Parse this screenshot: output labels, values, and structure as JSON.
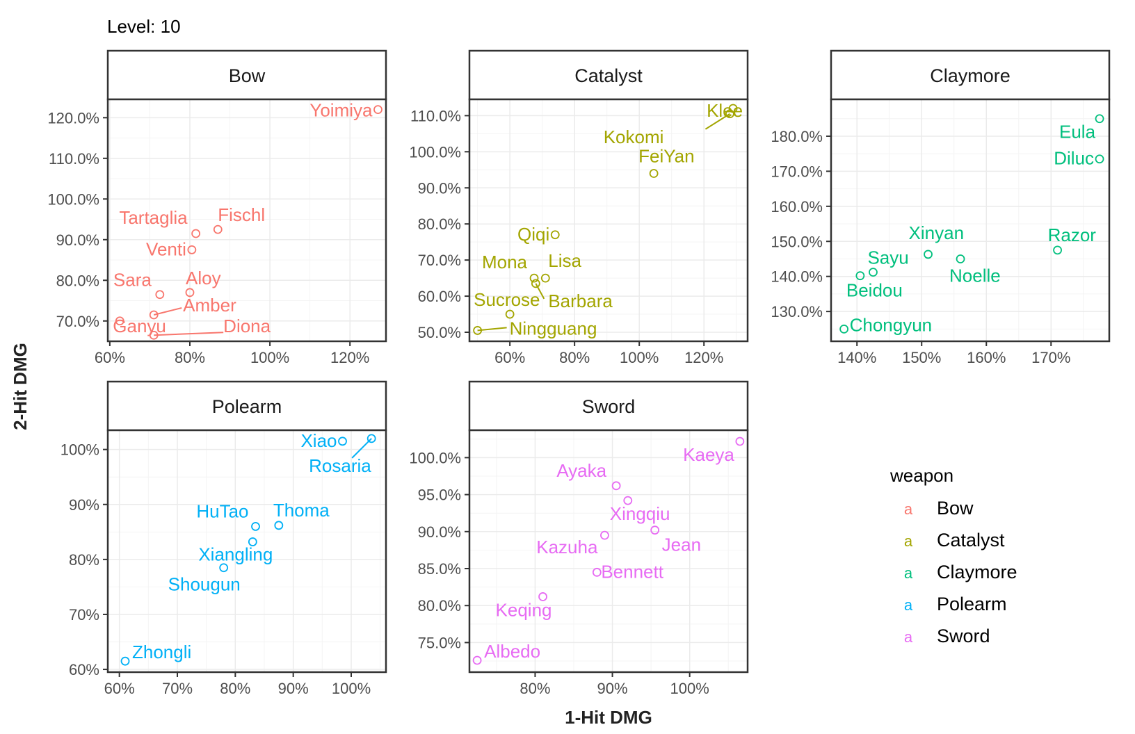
{
  "chart_data": {
    "type": "scatter",
    "title": "Level: 10",
    "xlabel": "1-Hit DMG",
    "ylabel": "2-Hit DMG",
    "legend": {
      "title": "weapon",
      "position": "right",
      "glyph": "a",
      "entries": [
        {
          "name": "Bow",
          "color": "#F8766D"
        },
        {
          "name": "Catalyst",
          "color": "#A3A500"
        },
        {
          "name": "Claymore",
          "color": "#00BF7D"
        },
        {
          "name": "Polearm",
          "color": "#00B0F6"
        },
        {
          "name": "Sword",
          "color": "#E76BF3"
        }
      ]
    },
    "grid": true,
    "panels": [
      {
        "title": "Bow",
        "color": "#F8766D",
        "xlim": [
          0.595,
          1.29
        ],
        "ylim": [
          0.65,
          1.245
        ],
        "xticks": [
          0.6,
          0.8,
          1.0,
          1.2
        ],
        "xtick_labels": [
          "60%",
          "80%",
          "100%",
          "120%"
        ],
        "yticks": [
          0.7,
          0.8,
          0.9,
          1.0,
          1.1,
          1.2
        ],
        "ytick_labels": [
          "70.0%",
          "80.0%",
          "90.0%",
          "100.0%",
          "110.0%",
          "120.0%"
        ],
        "points": [
          {
            "label": "Yoimiya",
            "x": 1.27,
            "y": 1.22
          },
          {
            "label": "Fischl",
            "x": 0.87,
            "y": 0.925
          },
          {
            "label": "Tartaglia",
            "x": 0.815,
            "y": 0.915
          },
          {
            "label": "Venti",
            "x": 0.805,
            "y": 0.875
          },
          {
            "label": "Sara",
            "x": 0.725,
            "y": 0.765
          },
          {
            "label": "Aloy",
            "x": 0.8,
            "y": 0.77
          },
          {
            "label": "Amber",
            "x": 0.71,
            "y": 0.715
          },
          {
            "label": "Ganyu",
            "x": 0.625,
            "y": 0.7
          },
          {
            "label": "Diona",
            "x": 0.71,
            "y": 0.665
          }
        ]
      },
      {
        "title": "Catalyst",
        "color": "#A3A500",
        "xlim": [
          0.475,
          1.335
        ],
        "ylim": [
          0.475,
          1.145
        ],
        "xticks": [
          0.6,
          0.8,
          1.0,
          1.2
        ],
        "xtick_labels": [
          "60%",
          "80%",
          "100%",
          "120%"
        ],
        "yticks": [
          0.5,
          0.6,
          0.7,
          0.8,
          0.9,
          1.0,
          1.1
        ],
        "ytick_labels": [
          "50.0%",
          "60.0%",
          "70.0%",
          "80.0%",
          "90.0%",
          "100.0%",
          "110.0%"
        ],
        "points": [
          {
            "label": "Klee",
            "x": 1.29,
            "y": 1.12
          },
          {
            "label": "Kokomi",
            "x": 1.28,
            "y": 1.105
          },
          {
            "label": "FeiYan",
            "x": 1.045,
            "y": 0.94
          },
          {
            "label": "Qiqi",
            "x": 0.74,
            "y": 0.77
          },
          {
            "label": "Lisa",
            "x": 0.71,
            "y": 0.65
          },
          {
            "label": "Mona",
            "x": 0.675,
            "y": 0.65
          },
          {
            "label": "Barbara",
            "x": 0.68,
            "y": 0.635
          },
          {
            "label": "Sucrose",
            "x": 0.6,
            "y": 0.55
          },
          {
            "label": "Ningguang",
            "x": 0.5,
            "y": 0.505
          }
        ]
      },
      {
        "title": "Claymore",
        "color": "#00BF7D",
        "xlim": [
          1.36,
          1.79
        ],
        "ylim": [
          1.215,
          1.905
        ],
        "xticks": [
          1.4,
          1.5,
          1.6,
          1.7
        ],
        "xtick_labels": [
          "140%",
          "150%",
          "160%",
          "170%"
        ],
        "yticks": [
          1.3,
          1.4,
          1.5,
          1.6,
          1.7,
          1.8
        ],
        "ytick_labels": [
          "130.0%",
          "140.0%",
          "150.0%",
          "160.0%",
          "170.0%",
          "180.0%"
        ],
        "points": [
          {
            "label": "Eula",
            "x": 1.775,
            "y": 1.85
          },
          {
            "label": "Diluc",
            "x": 1.775,
            "y": 1.735
          },
          {
            "label": "Razor",
            "x": 1.71,
            "y": 1.475
          },
          {
            "label": "Xinyan",
            "x": 1.51,
            "y": 1.463
          },
          {
            "label": "Noelle",
            "x": 1.56,
            "y": 1.45
          },
          {
            "label": "Sayu",
            "x": 1.425,
            "y": 1.412
          },
          {
            "label": "Beidou",
            "x": 1.405,
            "y": 1.402
          },
          {
            "label": "Chongyun",
            "x": 1.38,
            "y": 1.25
          }
        ]
      },
      {
        "title": "Polearm",
        "color": "#00B0F6",
        "xlim": [
          0.58,
          1.06
        ],
        "ylim": [
          0.595,
          1.035
        ],
        "xticks": [
          0.6,
          0.7,
          0.8,
          0.9,
          1.0
        ],
        "xtick_labels": [
          "60%",
          "70%",
          "80%",
          "90%",
          "100%"
        ],
        "yticks": [
          0.6,
          0.7,
          0.8,
          0.9,
          1.0
        ],
        "ytick_labels": [
          "60%",
          "70%",
          "80%",
          "90%",
          "100%"
        ],
        "points": [
          {
            "label": "Xiao",
            "x": 0.985,
            "y": 1.015
          },
          {
            "label": "Rosaria",
            "x": 1.035,
            "y": 1.02
          },
          {
            "label": "Thoma",
            "x": 0.875,
            "y": 0.862
          },
          {
            "label": "HuTao",
            "x": 0.835,
            "y": 0.86
          },
          {
            "label": "Xiangling",
            "x": 0.83,
            "y": 0.832
          },
          {
            "label": "Shougun",
            "x": 0.78,
            "y": 0.785
          },
          {
            "label": "Zhongli",
            "x": 0.61,
            "y": 0.615
          }
        ]
      },
      {
        "title": "Sword",
        "color": "#E76BF3",
        "xlim": [
          0.715,
          1.075
        ],
        "ylim": [
          0.71,
          1.037
        ],
        "xticks": [
          0.8,
          0.9,
          1.0
        ],
        "xtick_labels": [
          "80%",
          "90%",
          "100%"
        ],
        "yticks": [
          0.75,
          0.8,
          0.85,
          0.9,
          0.95,
          1.0
        ],
        "ytick_labels": [
          "75.0%",
          "80.0%",
          "85.0%",
          "90.0%",
          "95.0%",
          "100.0%"
        ],
        "points": [
          {
            "label": "Kaeya",
            "x": 1.065,
            "y": 1.022
          },
          {
            "label": "Ayaka",
            "x": 0.905,
            "y": 0.962
          },
          {
            "label": "Xingqiu",
            "x": 0.92,
            "y": 0.942
          },
          {
            "label": "Jean",
            "x": 0.955,
            "y": 0.902
          },
          {
            "label": "Kazuha",
            "x": 0.89,
            "y": 0.895
          },
          {
            "label": "Bennett",
            "x": 0.88,
            "y": 0.845
          },
          {
            "label": "Keqing",
            "x": 0.81,
            "y": 0.812
          },
          {
            "label": "Albedo",
            "x": 0.725,
            "y": 0.726
          }
        ]
      }
    ]
  }
}
